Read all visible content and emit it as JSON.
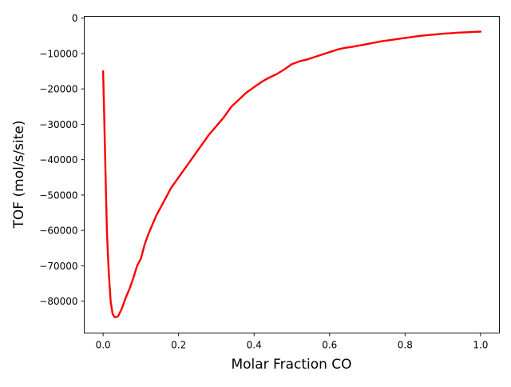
{
  "chart_data": {
    "type": "line",
    "title": "",
    "xlabel": "Molar Fraction CO",
    "ylabel": "TOF (mol/s/site)",
    "xlim": [
      -0.05,
      1.05
    ],
    "ylim": [
      -89000,
      500
    ],
    "x_ticks": [
      {
        "value": 0.0,
        "label": "0.0"
      },
      {
        "value": 0.2,
        "label": "0.2"
      },
      {
        "value": 0.4,
        "label": "0.4"
      },
      {
        "value": 0.6,
        "label": "0.6"
      },
      {
        "value": 0.8,
        "label": "0.8"
      },
      {
        "value": 1.0,
        "label": "1.0"
      }
    ],
    "y_ticks": [
      {
        "value": 0,
        "label": "0"
      },
      {
        "value": -10000,
        "label": "−10000"
      },
      {
        "value": -20000,
        "label": "−20000"
      },
      {
        "value": -30000,
        "label": "−30000"
      },
      {
        "value": -40000,
        "label": "−40000"
      },
      {
        "value": -50000,
        "label": "−50000"
      },
      {
        "value": -60000,
        "label": "−60000"
      },
      {
        "value": -70000,
        "label": "−70000"
      },
      {
        "value": -80000,
        "label": "−80000"
      }
    ],
    "grid": false,
    "legend": "none",
    "series": [
      {
        "color": "#ff0000",
        "x": [
          0.0,
          0.003,
          0.006,
          0.01,
          0.015,
          0.02,
          0.025,
          0.03,
          0.035,
          0.04,
          0.05,
          0.06,
          0.07,
          0.08,
          0.09,
          0.1,
          0.11,
          0.12,
          0.14,
          0.16,
          0.18,
          0.2,
          0.22,
          0.24,
          0.26,
          0.28,
          0.3,
          0.32,
          0.34,
          0.36,
          0.38,
          0.4,
          0.42,
          0.44,
          0.46,
          0.48,
          0.5,
          0.52,
          0.54,
          0.56,
          0.58,
          0.6,
          0.62,
          0.64,
          0.66,
          0.68,
          0.7,
          0.72,
          0.74,
          0.76,
          0.78,
          0.8,
          0.82,
          0.84,
          0.86,
          0.88,
          0.9,
          0.92,
          0.94,
          0.96,
          0.98,
          1.0
        ],
        "y": [
          -15000,
          -28000,
          -42000,
          -60000,
          -72000,
          -80000,
          -83500,
          -84500,
          -84500,
          -84200,
          -82000,
          -79000,
          -76500,
          -73500,
          -70000,
          -68000,
          -64000,
          -61000,
          -56000,
          -52000,
          -48000,
          -45000,
          -42000,
          -39000,
          -36000,
          -33000,
          -30500,
          -28000,
          -25000,
          -23000,
          -21000,
          -19500,
          -18000,
          -16800,
          -15800,
          -14500,
          -13000,
          -12200,
          -11700,
          -11000,
          -10300,
          -9600,
          -8900,
          -8400,
          -8100,
          -7700,
          -7300,
          -6900,
          -6500,
          -6200,
          -5900,
          -5600,
          -5300,
          -5000,
          -4800,
          -4600,
          -4400,
          -4250,
          -4100,
          -4000,
          -3900,
          -3800
        ]
      }
    ]
  }
}
